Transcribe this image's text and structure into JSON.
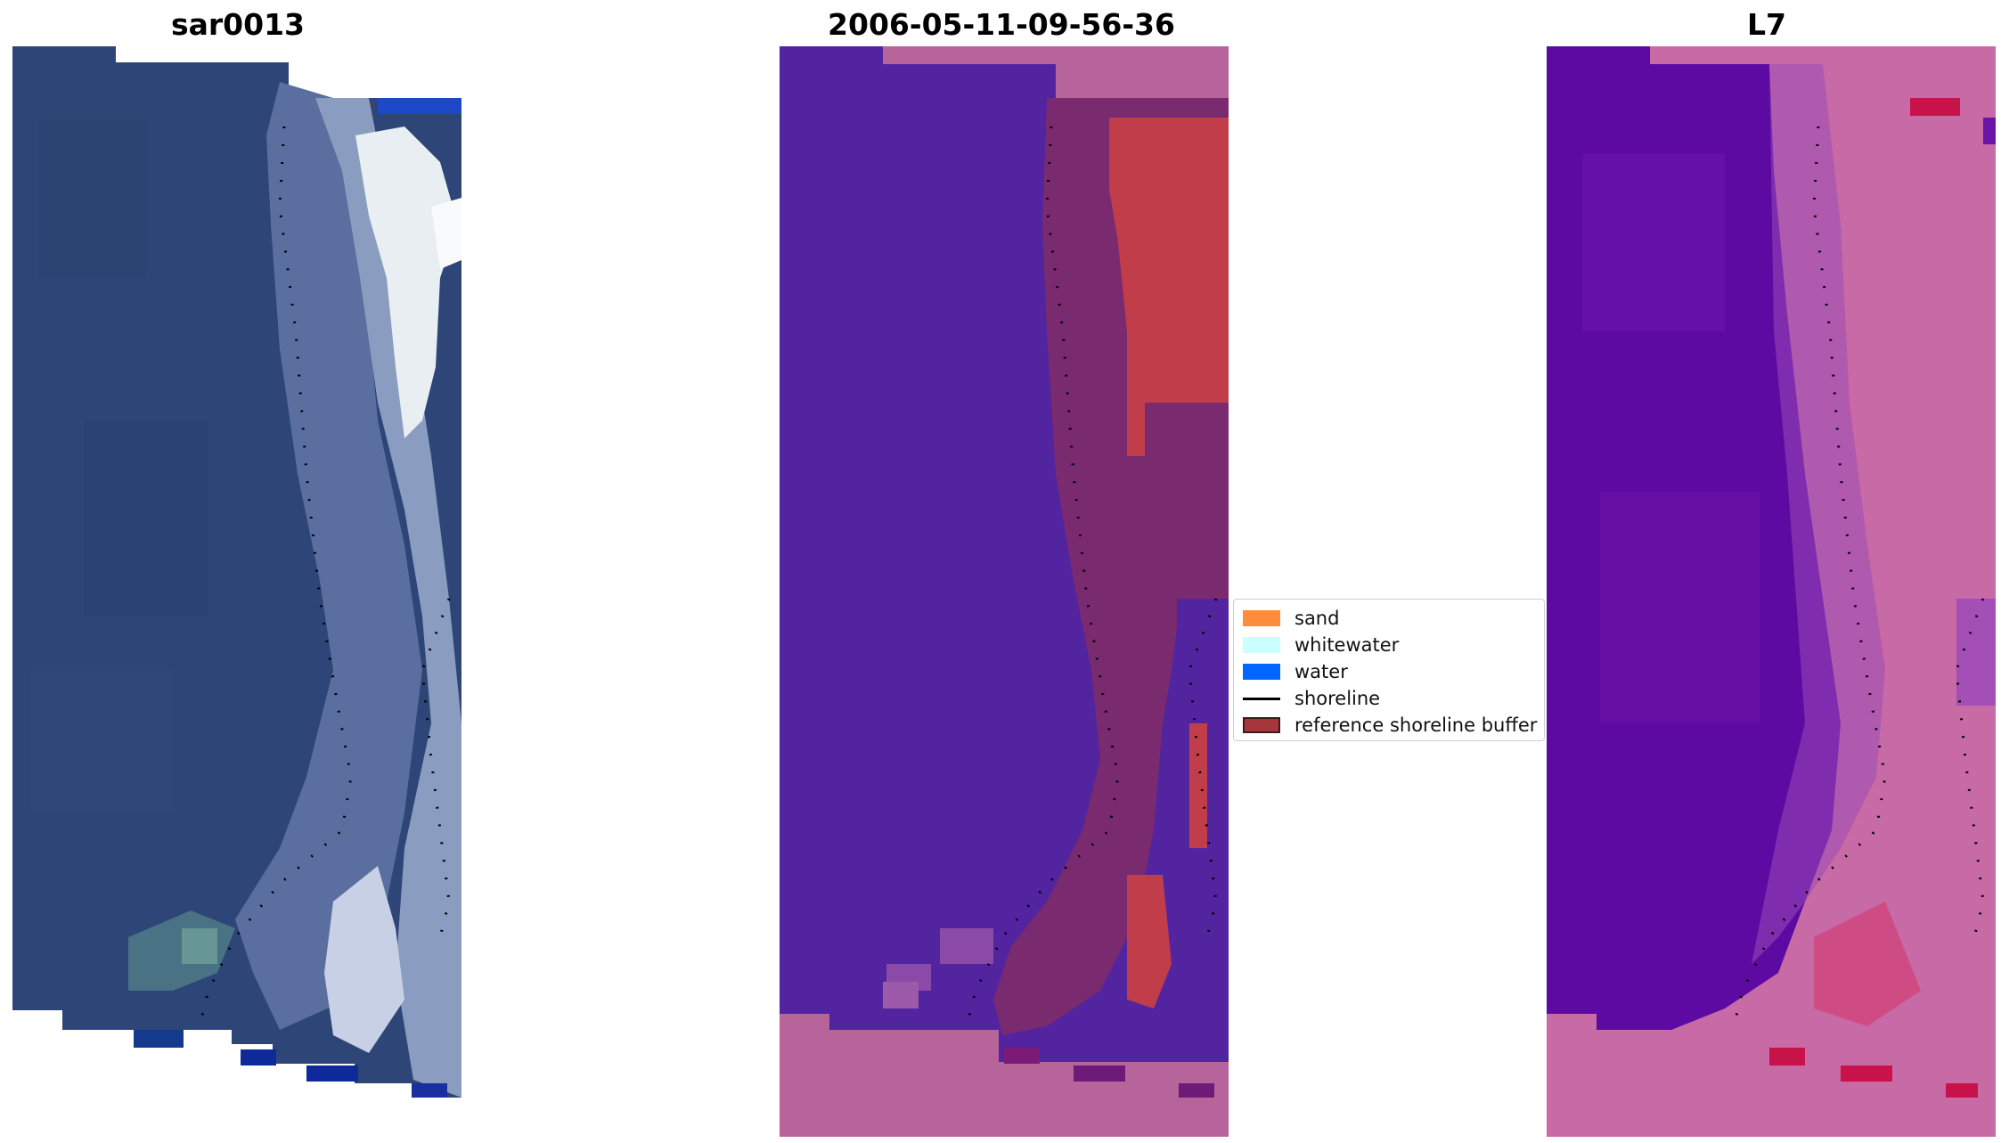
{
  "panels": {
    "left_title": "sar0013",
    "center_title": "2006-05-11-09-56-36",
    "right_title": "L7"
  },
  "legend": {
    "items": [
      {
        "label": "sand",
        "color": "#ff8c3a",
        "kind": "patch"
      },
      {
        "label": "whitewater",
        "color": "#ccffff",
        "kind": "patch"
      },
      {
        "label": "water",
        "color": "#0066ff",
        "kind": "patch"
      },
      {
        "label": "shoreline",
        "color": "#000000",
        "kind": "line"
      },
      {
        "label": "reference shoreline buffer",
        "color": "#a8353c",
        "kind": "patch"
      }
    ]
  },
  "colors": {
    "rgb_water": "#2b4575",
    "rgb_beach": "#8fa0c2",
    "rgb_whitewater": "#e8eef2",
    "classified_water": "#5224a0",
    "classified_land": "#b7649a",
    "classified_beach": "#7a2a6e",
    "classified_buffer": "#c23d4a",
    "ndwi_water": "#5d0aa2",
    "ndwi_land": "#c86aa5",
    "ndwi_hot": "#c8124a"
  }
}
